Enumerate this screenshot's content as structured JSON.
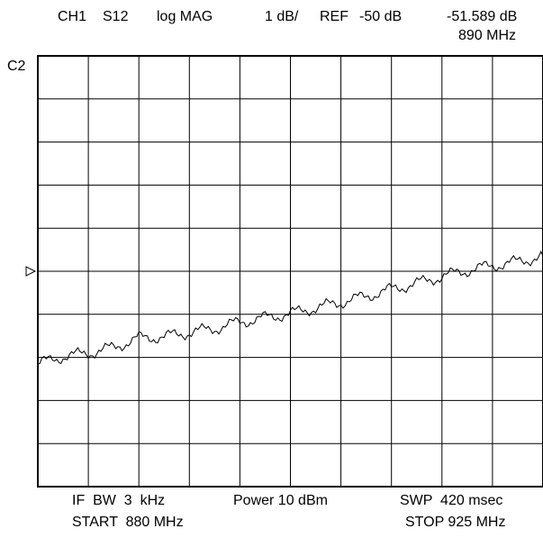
{
  "header": {
    "channel": "CH1",
    "parameter": "S12",
    "format": "log MAG",
    "scale": "1 dB/",
    "ref_label": "REF",
    "ref_value": "-50 dB",
    "marker_value": "-51.589 dB",
    "marker_freq": "890 MHz"
  },
  "side_label": "C2",
  "footer": {
    "if_bw": "IF  BW  3  kHz",
    "power": "Power 10 dBm",
    "sweep": "SWP  420 msec",
    "start": "START  880 MHz",
    "stop": "STOP 925 MHz"
  },
  "chart_data": {
    "type": "line",
    "x_unit": "MHz",
    "y_unit": "dB",
    "xlim": [
      880,
      925
    ],
    "ylim": [
      -55,
      -45
    ],
    "grid": true,
    "x_divisions": 10,
    "y_divisions": 10,
    "reference_level": -50,
    "reference_marker": "triangle-left",
    "series": [
      {
        "x": [
          880.0,
          882.25,
          884.5,
          886.75,
          889.0,
          891.25,
          893.5,
          895.75,
          898.0,
          900.25,
          902.5,
          904.75,
          907.0,
          909.25,
          911.5,
          913.75,
          916.0,
          918.25,
          920.5,
          922.75,
          925.0
        ],
        "y": [
          -52.15,
          -51.98,
          -51.9,
          -51.77,
          -51.55,
          -51.52,
          -51.42,
          -51.33,
          -51.18,
          -51.08,
          -50.98,
          -50.85,
          -50.72,
          -50.58,
          -50.42,
          -50.28,
          -50.12,
          -49.98,
          -49.87,
          -49.78,
          -49.65
        ]
      }
    ]
  }
}
